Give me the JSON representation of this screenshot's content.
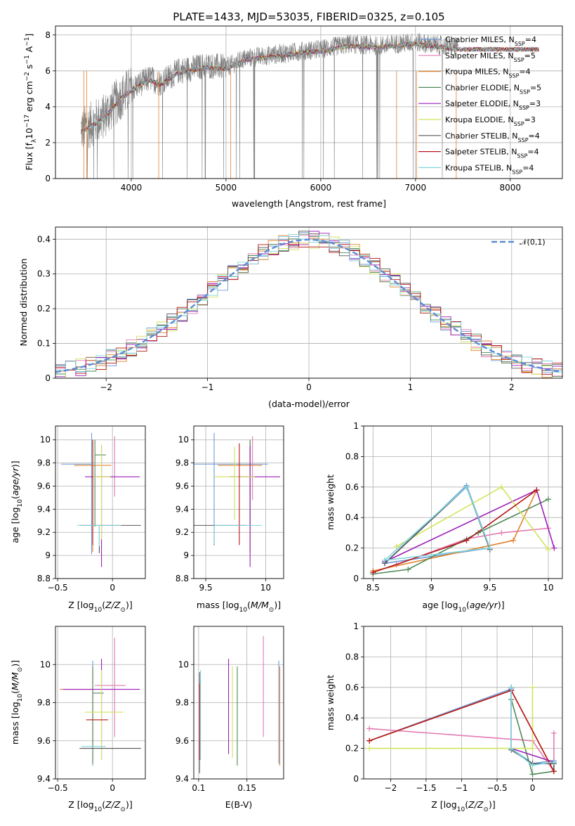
{
  "series_styles": [
    {
      "name": "Chabrier MILES",
      "sup": "SSP",
      "n": "4",
      "color": "#6f9ad7"
    },
    {
      "name": "Salpeter MILES",
      "sup": "SSP",
      "n": "5",
      "color": "#e17bb3"
    },
    {
      "name": "Kroupa MILES",
      "sup": "SSP",
      "n": "4",
      "color": "#e1822d"
    },
    {
      "name": "Chabrier ELODIE",
      "sup": "SSP",
      "n": "5",
      "color": "#4f8a57"
    },
    {
      "name": "Salpeter ELODIE",
      "sup": "SSP",
      "n": "3",
      "color": "#9c1fb8"
    },
    {
      "name": "Kroupa ELODIE",
      "sup": "SSP",
      "n": "3",
      "color": "#d3e35b"
    },
    {
      "name": "Chabrier STELIB",
      "sup": "SSP",
      "n": "4",
      "color": "#555555"
    },
    {
      "name": "Salpeter STELIB",
      "sup": "SSP",
      "n": "4",
      "color": "#b3161a"
    },
    {
      "name": "Kroupa STELIB",
      "sup": "SSP",
      "n": "4",
      "color": "#7fd5dd"
    }
  ],
  "chart_data": [
    {
      "id": "spectrum",
      "type": "line",
      "title": "PLATE=1433, MJD=53035, FIBERID=0325, z=0.105",
      "xlabel": "wavelength [Angstrom, rest frame]",
      "ylabel": "Flux [f_λ 10^-17 erg cm^-2 s^-1 A^-1]",
      "xlim": [
        3200,
        8550
      ],
      "ylim": [
        0,
        8.5
      ],
      "xticks": [
        4000,
        5000,
        6000,
        7000,
        8000
      ],
      "yticks": [
        0,
        2,
        4,
        6,
        8
      ],
      "data_range": [
        3470,
        7450
      ],
      "continuum": [
        [
          3470,
          2.7
        ],
        [
          3700,
          3.4
        ],
        [
          3800,
          4.0
        ],
        [
          3900,
          4.6
        ],
        [
          4000,
          5.0
        ],
        [
          4200,
          5.6
        ],
        [
          4300,
          5.3
        ],
        [
          4500,
          6.0
        ],
        [
          4800,
          6.3
        ],
        [
          5000,
          6.2
        ],
        [
          5200,
          6.7
        ],
        [
          5500,
          6.9
        ],
        [
          5800,
          7.1
        ],
        [
          6000,
          7.2
        ],
        [
          6300,
          7.5
        ],
        [
          6600,
          7.4
        ],
        [
          7000,
          7.6
        ],
        [
          7450,
          7.3
        ]
      ],
      "model_range": [
        3470,
        8300
      ]
    },
    {
      "id": "residuals",
      "type": "histogram",
      "xlabel": "(data-model)/error",
      "ylabel": "Normed distribution",
      "xlim": [
        -2.5,
        2.5
      ],
      "ylim": [
        0,
        0.435
      ],
      "xticks": [
        -2,
        -1,
        0,
        1,
        2
      ],
      "yticks": [
        0,
        0.1,
        0.2,
        0.3,
        0.4
      ],
      "bin_width": 0.1,
      "curve_label": "𝒩(0,1)",
      "curve_color": "#5b8bd5"
    },
    {
      "id": "age_vs_Z",
      "type": "errorbar",
      "xlabel": "Z [log10(Z/Z⊙)]",
      "ylabel": "age [log10(age/yr)]",
      "xlim": [
        -0.52,
        0.3
      ],
      "ylim": [
        8.8,
        10.12
      ],
      "xticks": [
        -0.5,
        0.0
      ],
      "yticks": [
        8.8,
        9.0,
        9.2,
        9.4,
        9.6,
        9.8,
        10.0
      ],
      "points": [
        {
          "x": -0.19,
          "xerr": [
            0.28,
            0.0
          ],
          "y": 9.79,
          "yerr": [
            0.78,
            0.27
          ]
        },
        {
          "x": 0.02,
          "xerr": [
            0.0,
            0.0
          ],
          "y": 9.78,
          "yerr": [
            0.27,
            0.25
          ]
        },
        {
          "x": -0.18,
          "xerr": [
            0.17,
            0.17
          ],
          "y": 9.78,
          "yerr": [
            0.75,
            0.22
          ]
        },
        {
          "x": -0.16,
          "xerr": [
            0.0,
            0.1
          ],
          "y": 9.87,
          "yerr": [
            0.62,
            0.13
          ]
        },
        {
          "x": -0.1,
          "xerr": [
            0.15,
            0.35
          ],
          "y": 9.68,
          "yerr": [
            0.78,
            0.27
          ]
        },
        {
          "x": -0.1,
          "xerr": [
            0.08,
            0.08
          ],
          "y": 9.68,
          "yerr": [
            0.54,
            0.28
          ]
        },
        {
          "x": -0.12,
          "xerr": [
            0.18,
            0.38
          ],
          "y": 9.26,
          "yerr": [
            0.24,
            0.0
          ]
        },
        {
          "x": -0.18,
          "xerr": [
            0.0,
            0.0
          ],
          "y": 9.78,
          "yerr": [
            0.69,
            0.22
          ]
        },
        {
          "x": -0.12,
          "xerr": [
            0.2,
            0.2
          ],
          "y": 9.26,
          "yerr": [
            0.18,
            0.0
          ]
        }
      ]
    },
    {
      "id": "age_vs_mass",
      "type": "errorbar",
      "xlabel": "mass [log10(M/M⊙)]",
      "ylabel": "",
      "xlim": [
        9.4,
        10.15
      ],
      "ylim": [
        8.8,
        10.12
      ],
      "xticks": [
        9.5,
        10.0
      ],
      "yticks": [
        8.8,
        9.0,
        9.2,
        9.4,
        9.6,
        9.8,
        10.0
      ],
      "points": [
        {
          "x": 9.57,
          "xerr": [
            0.18,
            0.45
          ],
          "y": 9.79,
          "yerr": [
            0.69,
            0.27
          ]
        },
        {
          "x": 9.89,
          "xerr": [
            0.0,
            0.0
          ],
          "y": 9.78,
          "yerr": [
            0.3,
            0.25
          ]
        },
        {
          "x": 9.87,
          "xerr": [
            0.27,
            0.1
          ],
          "y": 9.78,
          "yerr": [
            0.76,
            0.22
          ]
        },
        {
          "x": 9.87,
          "xerr": [
            0.0,
            0.0
          ],
          "y": 9.87,
          "yerr": [
            0.62,
            0.13
          ]
        },
        {
          "x": 9.87,
          "xerr": [
            0.17,
            0.25
          ],
          "y": 9.68,
          "yerr": [
            0.78,
            0.27
          ]
        },
        {
          "x": 9.74,
          "xerr": [
            0.17,
            0.17
          ],
          "y": 9.68,
          "yerr": [
            0.37,
            0.26
          ]
        },
        {
          "x": 9.57,
          "xerr": [
            0.17,
            0.27
          ],
          "y": 9.26,
          "yerr": [
            0.17,
            0.0
          ]
        },
        {
          "x": 9.78,
          "xerr": [
            0.0,
            0.0
          ],
          "y": 9.78,
          "yerr": [
            0.69,
            0.19
          ]
        },
        {
          "x": 9.57,
          "xerr": [
            0.0,
            0.4
          ],
          "y": 9.26,
          "yerr": [
            0.16,
            0.0
          ]
        }
      ]
    },
    {
      "id": "weight_vs_age",
      "type": "line",
      "xlabel": "age [log10(age/yr)]",
      "ylabel": "mass weight",
      "xlim": [
        8.42,
        10.12
      ],
      "ylim": [
        0,
        1.0
      ],
      "xticks": [
        8.5,
        9.0,
        9.5,
        10.0
      ],
      "yticks": [
        0.0,
        0.2,
        0.4,
        0.6,
        0.8,
        1.0
      ],
      "series": [
        {
          "x": [
            8.6,
            9.3,
            9.5,
            8.6
          ],
          "y": [
            0.1,
            0.61,
            0.2,
            0.1
          ]
        },
        {
          "x": [
            8.7,
            9.3,
            9.6,
            10.0
          ],
          "y": [
            0.09,
            0.26,
            0.3,
            0.33
          ]
        },
        {
          "x": [
            8.5,
            9.7,
            9.9
          ],
          "y": [
            0.05,
            0.25,
            0.58
          ]
        },
        {
          "x": [
            8.5,
            8.8,
            9.4,
            10.0
          ],
          "y": [
            0.03,
            0.06,
            0.3,
            0.52
          ]
        },
        {
          "x": [
            8.6,
            9.9,
            10.05
          ],
          "y": [
            0.11,
            0.58,
            0.2
          ]
        },
        {
          "x": [
            8.7,
            9.6,
            10.0
          ],
          "y": [
            0.21,
            0.6,
            0.19
          ]
        },
        {
          "x": [
            8.6,
            9.3,
            9.5
          ],
          "y": [
            0.1,
            0.6,
            0.19
          ]
        },
        {
          "x": [
            8.5,
            9.3,
            9.9
          ],
          "y": [
            0.04,
            0.25,
            0.58
          ]
        },
        {
          "x": [
            8.6,
            9.3,
            9.5,
            8.6
          ],
          "y": [
            0.12,
            0.6,
            0.2,
            0.12
          ]
        }
      ]
    },
    {
      "id": "mass_vs_Z",
      "type": "errorbar",
      "xlabel": "Z [log10(Z/Z⊙)]",
      "ylabel": "mass [log10(M/M⊙)]",
      "xlim": [
        -0.52,
        0.3
      ],
      "ylim": [
        9.4,
        10.2
      ],
      "xticks": [
        -0.5,
        0.0
      ],
      "yticks": [
        9.4,
        9.6,
        9.8,
        10.0
      ],
      "points": [
        {
          "x": -0.18,
          "xerr": [
            0.0,
            0.0
          ],
          "y": 9.87,
          "yerr": [
            0.4,
            0.15
          ]
        },
        {
          "x": 0.02,
          "xerr": [
            0.18,
            0.1
          ],
          "y": 9.89,
          "yerr": [
            0.27,
            0.25
          ]
        },
        {
          "x": -0.18,
          "xerr": [
            0.3,
            0.0
          ],
          "y": 9.87,
          "yerr": [
            0.38,
            0.1
          ]
        },
        {
          "x": -0.18,
          "xerr": [
            0.0,
            0.1
          ],
          "y": 9.85,
          "yerr": [
            0.37,
            0.14
          ]
        },
        {
          "x": -0.1,
          "xerr": [
            0.35,
            0.35
          ],
          "y": 9.87,
          "yerr": [
            0.37,
            0.16
          ]
        },
        {
          "x": -0.1,
          "xerr": [
            0.15,
            0.2
          ],
          "y": 9.75,
          "yerr": [
            0.25,
            0.22
          ]
        },
        {
          "x": -0.12,
          "xerr": [
            0.18,
            0.38
          ],
          "y": 9.56,
          "yerr": [
            0.0,
            0.0
          ]
        },
        {
          "x": -0.14,
          "xerr": [
            0.1,
            0.1
          ],
          "y": 9.71,
          "yerr": [
            0.0,
            0.0
          ]
        },
        {
          "x": -0.16,
          "xerr": [
            0.12,
            0.1
          ],
          "y": 9.57,
          "yerr": [
            0.0,
            0.0
          ]
        }
      ]
    },
    {
      "id": "mass_vs_ebv",
      "type": "errorbar",
      "xlabel": "E(B-V)",
      "ylabel": "",
      "xlim": [
        0.095,
        0.188
      ],
      "ylim": [
        9.4,
        10.2
      ],
      "xticks": [
        0.1,
        0.15
      ],
      "yticks": [
        9.4,
        9.6,
        9.8,
        10.0
      ],
      "points": [
        {
          "x": 0.183,
          "xerr": [
            0.0,
            0.0
          ],
          "y": 9.8,
          "yerr": [
            0.32,
            0.22
          ]
        },
        {
          "x": 0.167,
          "xerr": [
            0.0,
            0.0
          ],
          "y": 9.95,
          "yerr": [
            0.33,
            0.2
          ]
        },
        {
          "x": 0.184,
          "xerr": [
            0.0,
            0.0
          ],
          "y": 9.75,
          "yerr": [
            0.28,
            0.24
          ]
        },
        {
          "x": 0.14,
          "xerr": [
            0.0,
            0.0
          ],
          "y": 9.75,
          "yerr": [
            0.28,
            0.24
          ]
        },
        {
          "x": 0.131,
          "xerr": [
            0.0,
            0.0
          ],
          "y": 9.8,
          "yerr": [
            0.27,
            0.23
          ]
        },
        {
          "x": 0.135,
          "xerr": [
            0.0,
            0.0
          ],
          "y": 9.75,
          "yerr": [
            0.24,
            0.24
          ]
        },
        {
          "x": 0.101,
          "xerr": [
            0.0,
            0.0
          ],
          "y": 9.7,
          "yerr": [
            0.27,
            0.26
          ]
        },
        {
          "x": 0.101,
          "xerr": [
            0.0,
            0.0
          ],
          "y": 9.7,
          "yerr": [
            0.2,
            0.2
          ]
        },
        {
          "x": 0.102,
          "xerr": [
            0.0,
            0.0
          ],
          "y": 9.7,
          "yerr": [
            0.2,
            0.27
          ]
        }
      ]
    },
    {
      "id": "weight_vs_Z",
      "type": "line",
      "xlabel": "Z [log10(Z/Z⊙)]",
      "ylabel": "mass weight",
      "xlim": [
        -2.38,
        0.42
      ],
      "ylim": [
        0,
        1.0
      ],
      "xticks": [
        -2.0,
        -1.5,
        -1.0,
        -0.5,
        0.0
      ],
      "yticks": [
        0.0,
        0.2,
        0.4,
        0.6,
        0.8,
        1.0
      ],
      "series": [
        {
          "x": [
            -2.3,
            -0.3,
            -0.3,
            0.0,
            0.3,
            0.3
          ],
          "y": [
            0.25,
            0.59,
            0.2,
            0.1,
            0.12,
            0.05
          ]
        },
        {
          "x": [
            -2.3,
            0.0,
            0.3,
            0.3
          ],
          "y": [
            0.33,
            0.25,
            0.05,
            0.3
          ]
        },
        {
          "x": [
            -2.3,
            -0.3,
            0.3
          ],
          "y": [
            0.25,
            0.58,
            0.05
          ]
        },
        {
          "x": [
            -0.3,
            0.0,
            0.3,
            0.3
          ],
          "y": [
            0.52,
            0.03,
            0.05,
            0.1
          ]
        },
        {
          "x": [
            -0.3,
            -0.3,
            0.3
          ],
          "y": [
            0.58,
            0.2,
            0.11
          ]
        },
        {
          "x": [
            -2.3,
            0.0,
            0.0
          ],
          "y": [
            0.2,
            0.2,
            0.6
          ]
        },
        {
          "x": [
            -0.3,
            -0.3,
            0.0,
            0.3
          ],
          "y": [
            0.6,
            0.19,
            0.1,
            0.1
          ]
        },
        {
          "x": [
            -2.3,
            -0.3,
            0.3
          ],
          "y": [
            0.25,
            0.58,
            0.05
          ]
        },
        {
          "x": [
            -0.3,
            -0.3,
            0.0,
            0.3
          ],
          "y": [
            0.6,
            0.2,
            0.09,
            0.11
          ]
        }
      ]
    }
  ]
}
